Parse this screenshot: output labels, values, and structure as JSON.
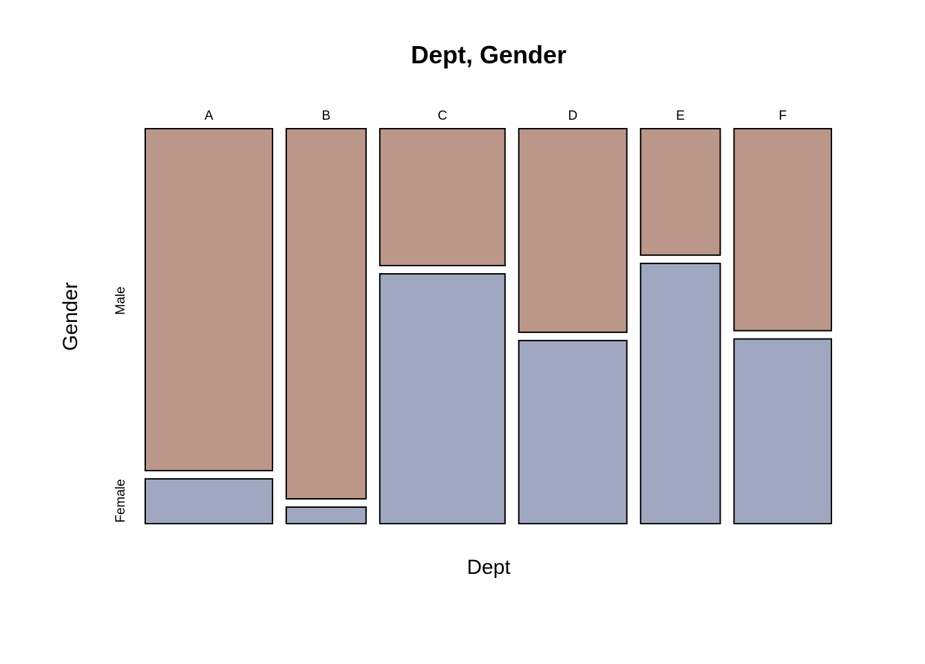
{
  "chart_data": {
    "type": "mosaic",
    "title": "Dept, Gender",
    "xlabel": "Dept",
    "ylabel": "Gender",
    "categories": [
      "A",
      "B",
      "C",
      "D",
      "E",
      "F"
    ],
    "column_totals": [
      933,
      585,
      918,
      792,
      584,
      714
    ],
    "series": [
      {
        "name": "Male",
        "values": [
          825,
          560,
          325,
          417,
          191,
          373
        ],
        "color": "#bb978a"
      },
      {
        "name": "Female",
        "values": [
          108,
          25,
          593,
          375,
          393,
          341
        ],
        "color": "#a0a7c0"
      }
    ]
  }
}
